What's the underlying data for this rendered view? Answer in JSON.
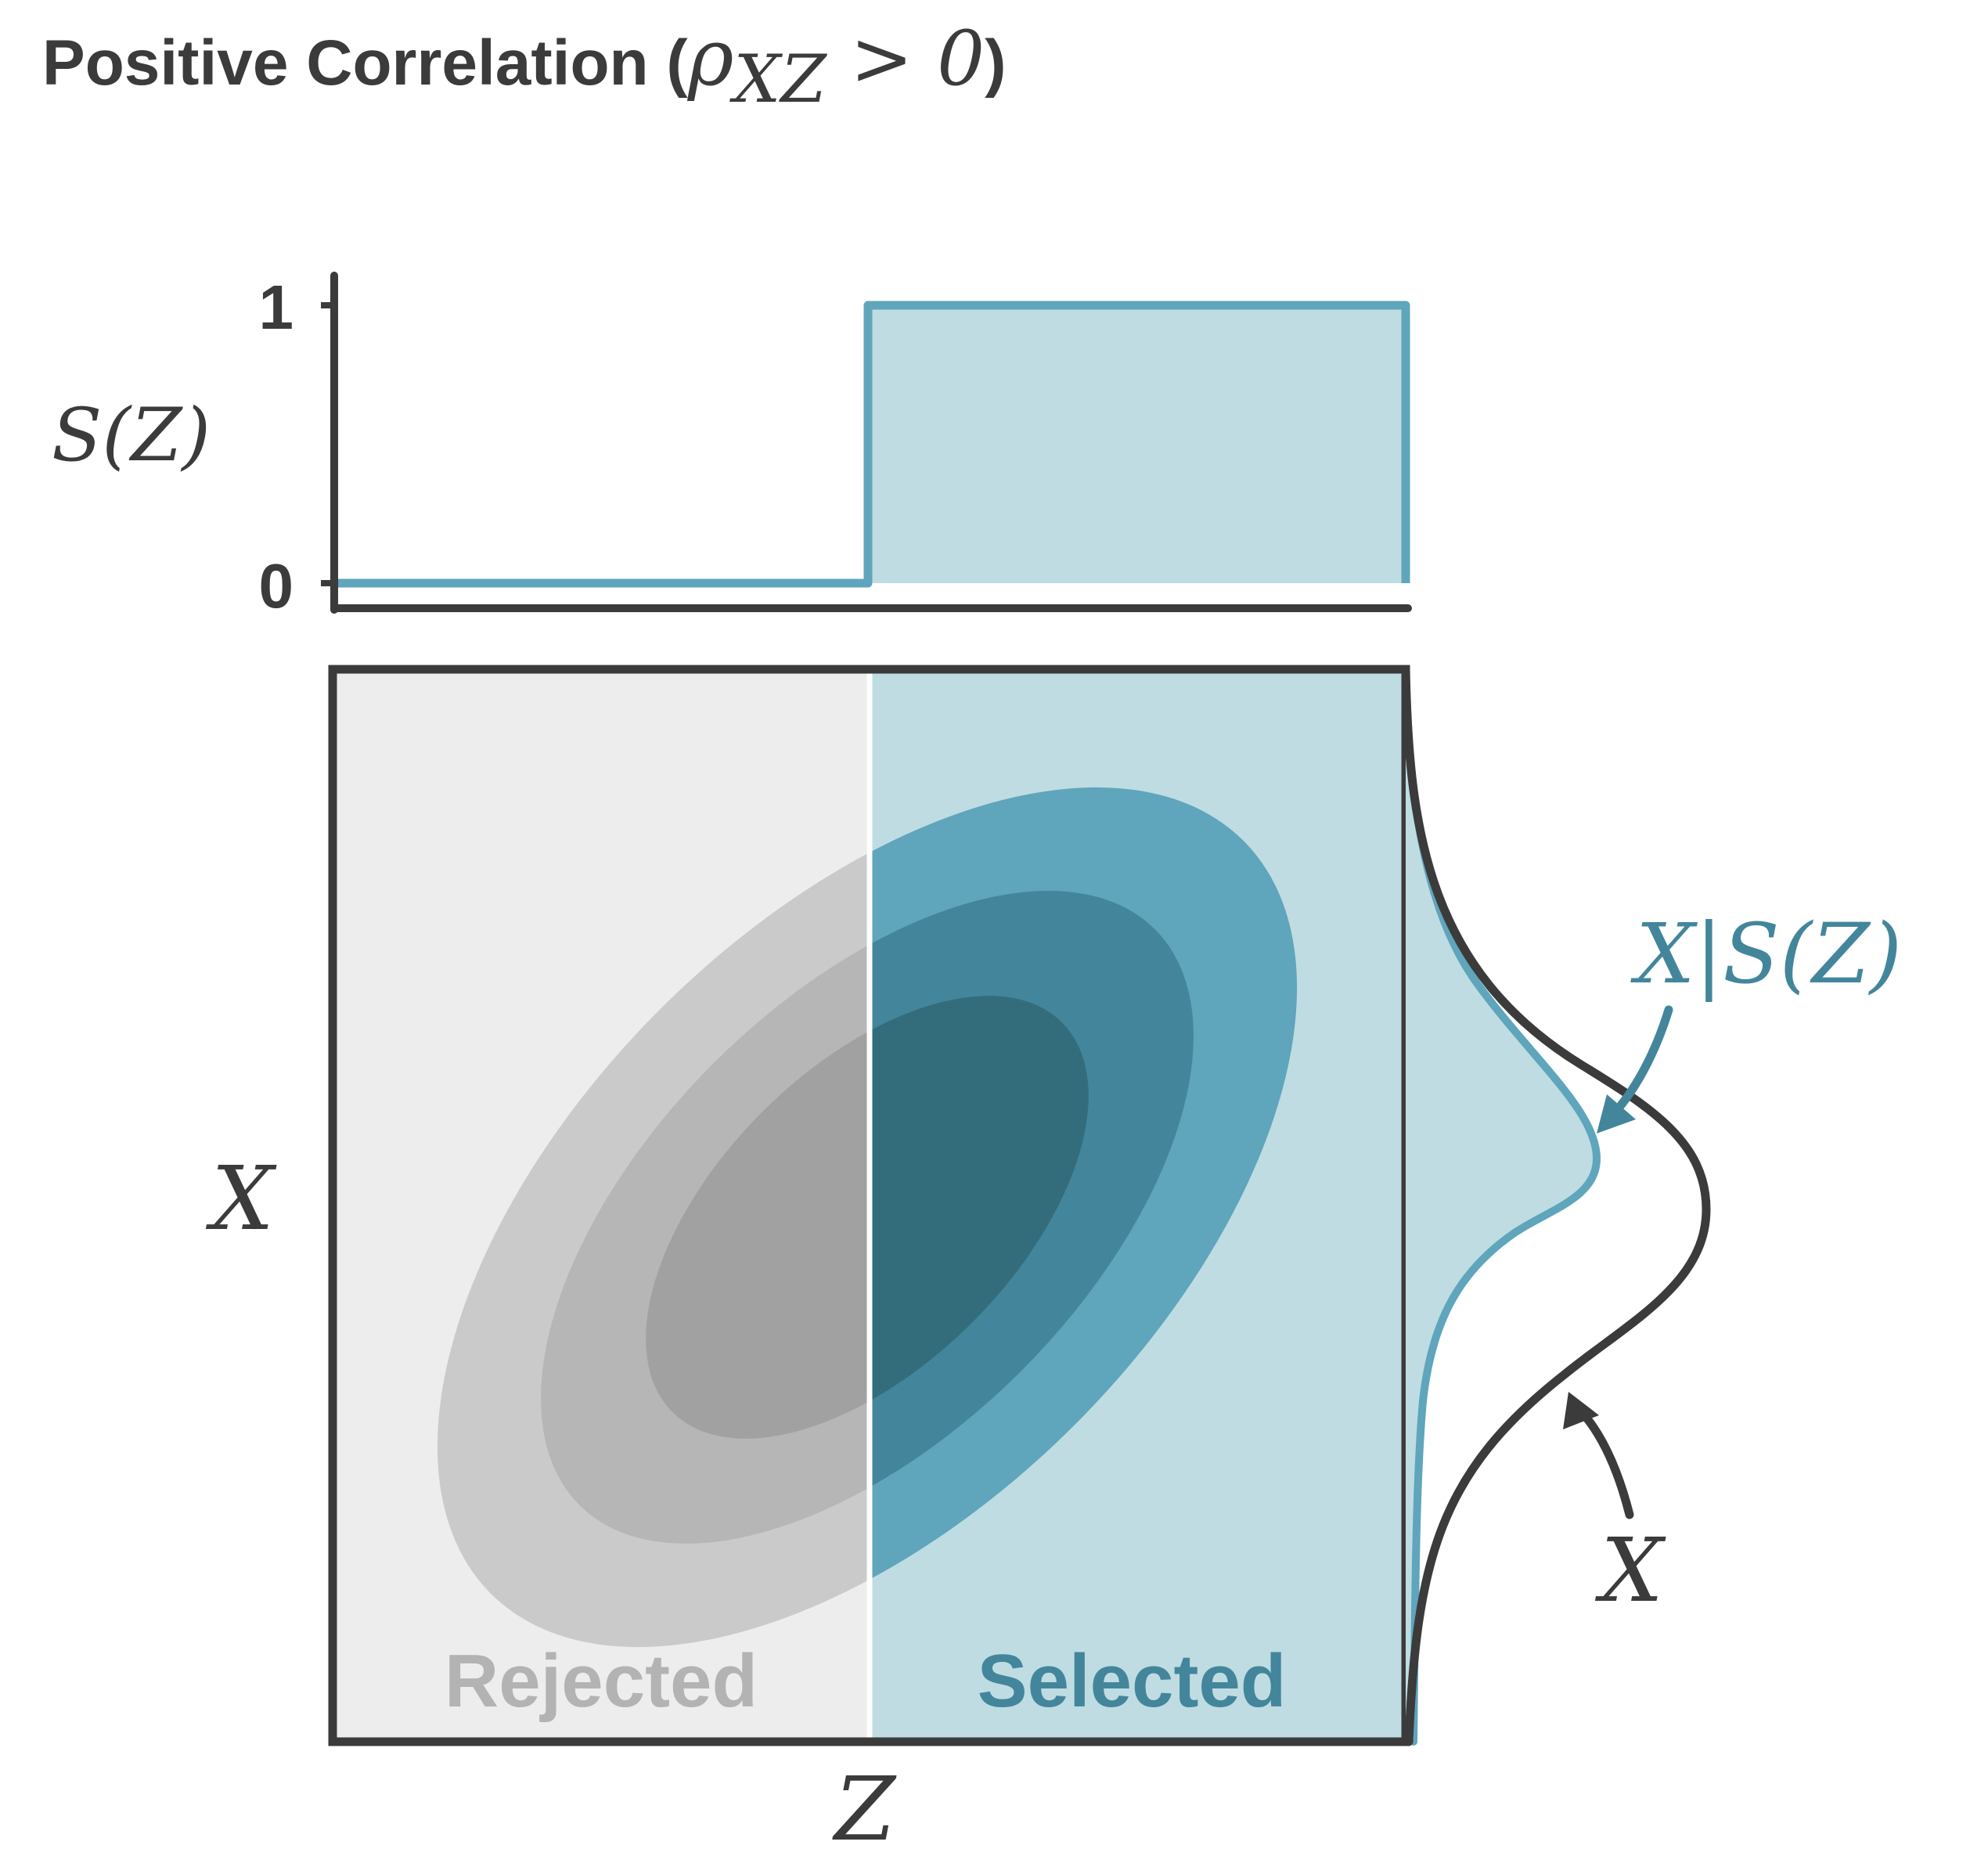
{
  "title": {
    "prefix": "Positive Correlation (",
    "rho": "ρ",
    "subscript": "XZ",
    "condition": " > 0",
    "suffix": ")"
  },
  "selection_plot": {
    "ylabel": "S(Z)",
    "yticks": [
      "1",
      "0"
    ],
    "threshold_fraction": 0.5,
    "low_value": 0,
    "high_value": 1
  },
  "joint_plot": {
    "ylabel": "X",
    "xlabel": "Z",
    "regions": {
      "rejected_label": "Rejected",
      "selected_label": "Selected"
    }
  },
  "marginals": {
    "conditional_label": "X|S(Z)",
    "marginal_label": "X"
  },
  "colors": {
    "dark": "#3b3b3b",
    "teal_light": "#bfdce3",
    "teal_line": "#5fa5bc",
    "teal_mid": "#43869b",
    "teal_dark": "#336d7c",
    "gray_bg": "#ededed",
    "gray_1": "#cacaca",
    "gray_2": "#b6b6b6",
    "gray_3": "#a1a1a1",
    "rejected_text": "#b3b3b3",
    "selected_text": "#43869b"
  }
}
